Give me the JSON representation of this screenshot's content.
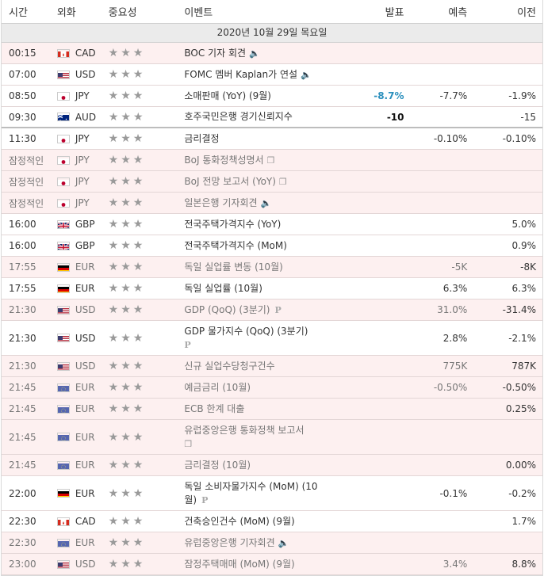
{
  "header": {
    "time": "시간",
    "currency": "외화",
    "importance": "중요성",
    "event": "이벤트",
    "actual": "발표",
    "forecast": "예측",
    "previous": "이전"
  },
  "date_label": "2020년 10월 29일 목요일",
  "rows": [
    {
      "time": "00:15",
      "flag": "ca",
      "cur": "CAD",
      "stars": 3,
      "event": "BOC 기자 회견",
      "icon": "speaker",
      "actual": "",
      "forecast": "",
      "previous": "",
      "bg": "pink",
      "h": 27
    },
    {
      "time": "07:00",
      "flag": "us",
      "cur": "USD",
      "stars": 3,
      "event": "FOMC 멤버 Kaplan가 연설",
      "icon": "speaker",
      "actual": "",
      "forecast": "",
      "previous": "",
      "bg": "white",
      "h": 27
    },
    {
      "time": "08:50",
      "flag": "jp",
      "cur": "JPY",
      "stars": 3,
      "event": "소매판매 (YoY) (9월)",
      "icon": "",
      "actual": "-8.7%",
      "actual_style": "up",
      "forecast": "-7.7%",
      "previous": "-1.9%",
      "bg": "white",
      "h": 27
    },
    {
      "time": "09:30",
      "flag": "au",
      "cur": "AUD",
      "stars": 3,
      "event": "호주국민은행 경기신뢰지수",
      "icon": "",
      "actual": "-10",
      "actual_style": "bold",
      "forecast": "",
      "previous": "-15",
      "bg": "white",
      "h": 27,
      "sep": true
    },
    {
      "time": "11:30",
      "flag": "jp",
      "cur": "JPY",
      "stars": 3,
      "event": "금리결정",
      "icon": "",
      "actual": "",
      "forecast": "-0.10%",
      "previous": "-0.10%",
      "bg": "white",
      "h": 27
    },
    {
      "time": "잠정적인",
      "flag": "jp",
      "cur": "JPY",
      "stars": 3,
      "event": "BoJ 통화정책성명서",
      "icon": "doc",
      "actual": "",
      "forecast": "",
      "previous": "",
      "bg": "pink",
      "h": 27,
      "muted": true
    },
    {
      "time": "잠정적인",
      "flag": "jp",
      "cur": "JPY",
      "stars": 3,
      "event": "BoJ 전망 보고서 (YoY)",
      "icon": "doc",
      "actual": "",
      "forecast": "",
      "previous": "",
      "bg": "pink",
      "h": 27,
      "muted": true
    },
    {
      "time": "잠정적인",
      "flag": "jp",
      "cur": "JPY",
      "stars": 3,
      "event": "일본은행 기자회견",
      "icon": "speaker",
      "actual": "",
      "forecast": "",
      "previous": "",
      "bg": "pink",
      "h": 27,
      "muted": true
    },
    {
      "time": "16:00",
      "flag": "gb",
      "cur": "GBP",
      "stars": 3,
      "event": "전국주택가격지수 (YoY)",
      "icon": "",
      "actual": "",
      "forecast": "",
      "previous": "5.0%",
      "bg": "white",
      "h": 27
    },
    {
      "time": "16:00",
      "flag": "gb",
      "cur": "GBP",
      "stars": 3,
      "event": "전국주택가격지수 (MoM)",
      "icon": "",
      "actual": "",
      "forecast": "",
      "previous": "0.9%",
      "bg": "white",
      "h": 27
    },
    {
      "time": "17:55",
      "flag": "de",
      "cur": "EUR",
      "stars": 3,
      "event": "독일 실업률 변동 (10월)",
      "icon": "",
      "actual": "",
      "forecast": "-5K",
      "previous": "-8K",
      "bg": "pink",
      "h": 27,
      "muted": true
    },
    {
      "time": "17:55",
      "flag": "de",
      "cur": "EUR",
      "stars": 3,
      "event": "독일 실업률 (10월)",
      "icon": "",
      "actual": "",
      "forecast": "6.3%",
      "previous": "6.3%",
      "bg": "white",
      "h": 27
    },
    {
      "time": "21:30",
      "flag": "us",
      "cur": "USD",
      "stars": 3,
      "event": "GDP (QoQ) (3분기)",
      "icon": "p",
      "actual": "",
      "forecast": "31.0%",
      "previous": "-31.4%",
      "bg": "pink",
      "h": 27,
      "muted": true
    },
    {
      "time": "21:30",
      "flag": "us",
      "cur": "USD",
      "stars": 3,
      "event": "GDP 물가지수 (QoQ) (3분기)",
      "icon": "p2",
      "actual": "",
      "forecast": "2.8%",
      "previous": "-2.1%",
      "bg": "white",
      "h": 44
    },
    {
      "time": "21:30",
      "flag": "us",
      "cur": "USD",
      "stars": 3,
      "event": "신규 실업수당청구건수",
      "icon": "",
      "actual": "",
      "forecast": "775K",
      "previous": "787K",
      "bg": "pink",
      "h": 27,
      "muted": true
    },
    {
      "time": "21:45",
      "flag": "eu",
      "cur": "EUR",
      "stars": 3,
      "event": "예금금리 (10월)",
      "icon": "",
      "actual": "",
      "forecast": "-0.50%",
      "previous": "-0.50%",
      "bg": "pink",
      "h": 27,
      "muted": true
    },
    {
      "time": "21:45",
      "flag": "eu",
      "cur": "EUR",
      "stars": 3,
      "event": "ECB 한계 대출",
      "icon": "",
      "actual": "",
      "forecast": "",
      "previous": "0.25%",
      "bg": "pink",
      "h": 27,
      "muted": true
    },
    {
      "time": "21:45",
      "flag": "eu",
      "cur": "EUR",
      "stars": 3,
      "event": "유럽중앙은행 통화정책 보고서",
      "icon": "doc2",
      "actual": "",
      "forecast": "",
      "previous": "",
      "bg": "pink",
      "h": 44,
      "muted": true
    },
    {
      "time": "21:45",
      "flag": "eu",
      "cur": "EUR",
      "stars": 3,
      "event": "금리결정 (10월)",
      "icon": "",
      "actual": "",
      "forecast": "",
      "previous": "0.00%",
      "bg": "pink",
      "h": 27,
      "muted": true
    },
    {
      "time": "22:00",
      "flag": "de",
      "cur": "EUR",
      "stars": 3,
      "event": "독일 소비자물가지수 (MoM) (10월)",
      "icon": "p",
      "actual": "",
      "forecast": "-0.1%",
      "previous": "-0.2%",
      "bg": "white",
      "h": 44
    },
    {
      "time": "22:30",
      "flag": "ca",
      "cur": "CAD",
      "stars": 3,
      "event": "건축승인건수 (MoM) (9월)",
      "icon": "",
      "actual": "",
      "forecast": "",
      "previous": "1.7%",
      "bg": "white",
      "h": 27
    },
    {
      "time": "22:30",
      "flag": "eu",
      "cur": "EUR",
      "stars": 3,
      "event": "유럽중앙은행 기자회견",
      "icon": "speaker",
      "actual": "",
      "forecast": "",
      "previous": "",
      "bg": "pink",
      "h": 27,
      "muted": true
    },
    {
      "time": "23:00",
      "flag": "us",
      "cur": "USD",
      "stars": 3,
      "event": "잠정주택매매 (MoM) (9월)",
      "icon": "",
      "actual": "",
      "forecast": "3.4%",
      "previous": "8.8%",
      "bg": "pink",
      "h": 27,
      "muted": true
    }
  ],
  "colors": {
    "actual_up": "#2a8fbd",
    "row_pink": "#fdf0f0",
    "date_bar": "#ebebeb"
  }
}
